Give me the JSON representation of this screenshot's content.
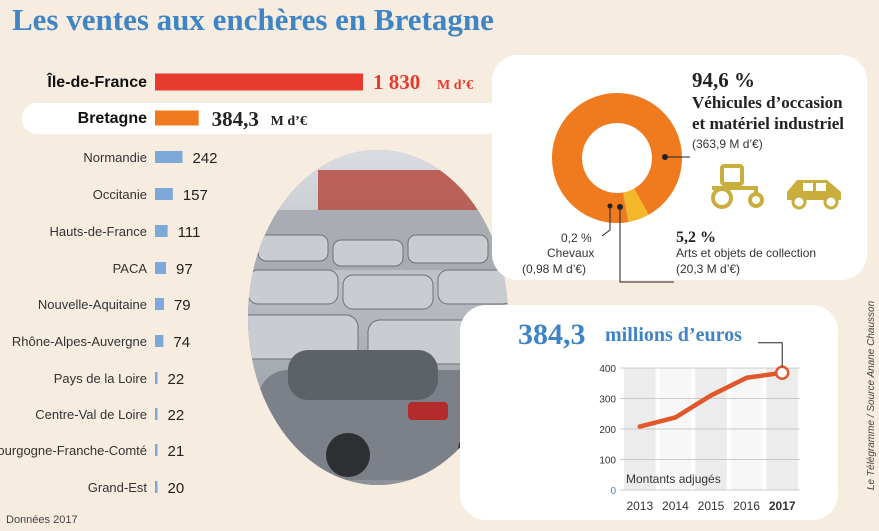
{
  "title": "Les ventes aux enchères en Bretagne",
  "source": "Données 2017",
  "credit": "Le Télégramme / Source Anane Chausson",
  "chart_data": [
    {
      "type": "bar",
      "orientation": "horizontal",
      "categories": [
        "Île-de-France",
        "Bretagne",
        "Normandie",
        "Occitanie",
        "Hauts-de-France",
        "PACA",
        "Nouvelle-Aquitaine",
        "Rhône-Alpes-Auvergne",
        "Pays de la Loire",
        "Centre-Val de Loire",
        "Bourgogne-Franche-Comté",
        "Grand-Est"
      ],
      "values": [
        1830,
        384.3,
        242,
        157,
        111,
        97,
        79,
        74,
        22,
        22,
        21,
        20
      ],
      "value_labels": [
        "1 830",
        "384,3",
        "242",
        "157",
        "111",
        "97",
        "79",
        "74",
        "22",
        "22",
        "21",
        "20"
      ],
      "unit_label": "M d’€",
      "colors": {
        "ile_de_france": "#e63b2e",
        "bretagne": "#f07a1e",
        "default": "#7da9d9"
      }
    },
    {
      "type": "pie",
      "style": "donut",
      "slices": [
        {
          "pct": "94,6 %",
          "value": 94.6,
          "label_line1": "Véhicules d’occasion",
          "label_line2": "et matériel industriel",
          "amount": "(363,9 M d’€)",
          "color": "#f07a1e"
        },
        {
          "pct": "5,2 %",
          "value": 5.2,
          "label_line1": "Arts et objets de collection",
          "amount": "(20,3 M d’€)",
          "color": "#f4b72a"
        },
        {
          "pct": "0,2 %",
          "value": 0.2,
          "label_line1": "Chevaux",
          "amount": "(0,98 M d’€)",
          "color": "#c8a020"
        }
      ]
    },
    {
      "type": "line",
      "headline_value": "384,3",
      "headline_text": "millions d’euros",
      "series_label": "Montants adjugés",
      "x": [
        "2013",
        "2014",
        "2015",
        "2016",
        "2017"
      ],
      "y": [
        208,
        238,
        310,
        368,
        384.3
      ],
      "ylim": [
        0,
        400
      ],
      "yticks": [
        "0",
        "100",
        "200",
        "300",
        "400"
      ],
      "color": "#e0582a"
    }
  ]
}
